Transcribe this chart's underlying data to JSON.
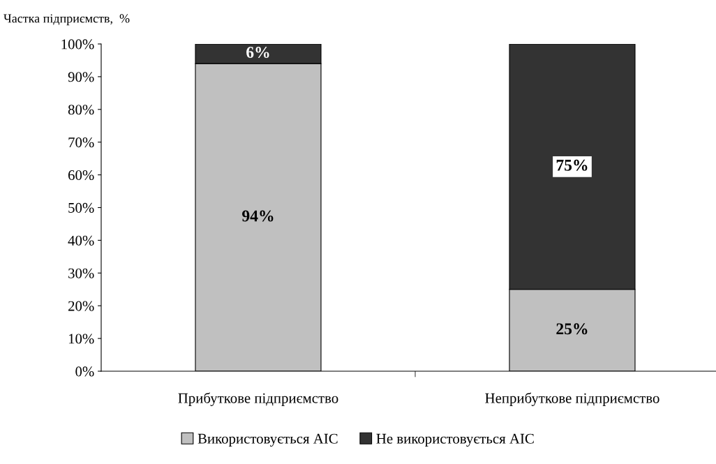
{
  "chart_data": {
    "type": "bar",
    "stacked": true,
    "ylabel": "Частка підприємств,  %",
    "categories": [
      "Прибуткове підприємство",
      "Неприбуткове підприємство"
    ],
    "series": [
      {
        "name": "Використовується АІС",
        "color": "#c0c0c0",
        "values": [
          94,
          25
        ],
        "value_labels": [
          "94%",
          "25%"
        ]
      },
      {
        "name": "Не використовується АІС",
        "color": "#333333",
        "values": [
          6,
          75
        ],
        "value_labels": [
          "6%",
          "75%"
        ]
      }
    ],
    "ylim": [
      0,
      100
    ],
    "yticks": [
      {
        "value": 0,
        "label": "0%"
      },
      {
        "value": 10,
        "label": "10%"
      },
      {
        "value": 20,
        "label": "20%"
      },
      {
        "value": 30,
        "label": "30%"
      },
      {
        "value": 40,
        "label": "40%"
      },
      {
        "value": 50,
        "label": "50%"
      },
      {
        "value": 60,
        "label": "60%"
      },
      {
        "value": 70,
        "label": "70%"
      },
      {
        "value": 80,
        "label": "80%"
      },
      {
        "value": 90,
        "label": "90%"
      },
      {
        "value": 100,
        "label": "100%"
      }
    ],
    "grid": false,
    "legend": "bottom"
  }
}
